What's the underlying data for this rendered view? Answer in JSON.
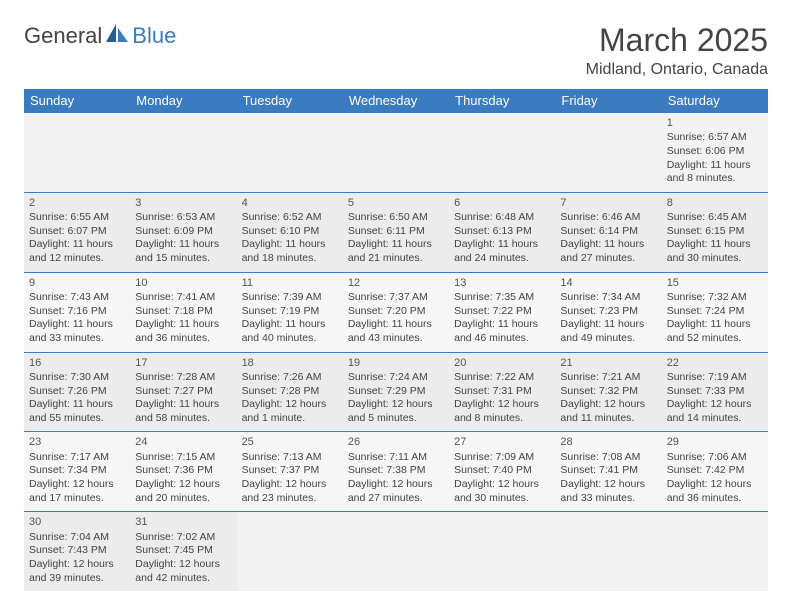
{
  "logo": {
    "word1": "General",
    "word2": "Blue"
  },
  "title": "March 2025",
  "location": "Midland, Ontario, Canada",
  "dayHeaders": [
    "Sunday",
    "Monday",
    "Tuesday",
    "Wednesday",
    "Thursday",
    "Friday",
    "Saturday"
  ],
  "colors": {
    "headerBg": "#3b7bbf",
    "headerText": "#ffffff",
    "bodyText": "#444444",
    "rowAlt1": "#f2f2f2",
    "rowAlt2": "#ececec",
    "borderTop": "#3b7bbf"
  },
  "weeks": [
    [
      null,
      null,
      null,
      null,
      null,
      null,
      {
        "n": "1",
        "sr": "Sunrise: 6:57 AM",
        "ss": "Sunset: 6:06 PM",
        "dl": "Daylight: 11 hours and 8 minutes."
      }
    ],
    [
      {
        "n": "2",
        "sr": "Sunrise: 6:55 AM",
        "ss": "Sunset: 6:07 PM",
        "dl": "Daylight: 11 hours and 12 minutes."
      },
      {
        "n": "3",
        "sr": "Sunrise: 6:53 AM",
        "ss": "Sunset: 6:09 PM",
        "dl": "Daylight: 11 hours and 15 minutes."
      },
      {
        "n": "4",
        "sr": "Sunrise: 6:52 AM",
        "ss": "Sunset: 6:10 PM",
        "dl": "Daylight: 11 hours and 18 minutes."
      },
      {
        "n": "5",
        "sr": "Sunrise: 6:50 AM",
        "ss": "Sunset: 6:11 PM",
        "dl": "Daylight: 11 hours and 21 minutes."
      },
      {
        "n": "6",
        "sr": "Sunrise: 6:48 AM",
        "ss": "Sunset: 6:13 PM",
        "dl": "Daylight: 11 hours and 24 minutes."
      },
      {
        "n": "7",
        "sr": "Sunrise: 6:46 AM",
        "ss": "Sunset: 6:14 PM",
        "dl": "Daylight: 11 hours and 27 minutes."
      },
      {
        "n": "8",
        "sr": "Sunrise: 6:45 AM",
        "ss": "Sunset: 6:15 PM",
        "dl": "Daylight: 11 hours and 30 minutes."
      }
    ],
    [
      {
        "n": "9",
        "sr": "Sunrise: 7:43 AM",
        "ss": "Sunset: 7:16 PM",
        "dl": "Daylight: 11 hours and 33 minutes."
      },
      {
        "n": "10",
        "sr": "Sunrise: 7:41 AM",
        "ss": "Sunset: 7:18 PM",
        "dl": "Daylight: 11 hours and 36 minutes."
      },
      {
        "n": "11",
        "sr": "Sunrise: 7:39 AM",
        "ss": "Sunset: 7:19 PM",
        "dl": "Daylight: 11 hours and 40 minutes."
      },
      {
        "n": "12",
        "sr": "Sunrise: 7:37 AM",
        "ss": "Sunset: 7:20 PM",
        "dl": "Daylight: 11 hours and 43 minutes."
      },
      {
        "n": "13",
        "sr": "Sunrise: 7:35 AM",
        "ss": "Sunset: 7:22 PM",
        "dl": "Daylight: 11 hours and 46 minutes."
      },
      {
        "n": "14",
        "sr": "Sunrise: 7:34 AM",
        "ss": "Sunset: 7:23 PM",
        "dl": "Daylight: 11 hours and 49 minutes."
      },
      {
        "n": "15",
        "sr": "Sunrise: 7:32 AM",
        "ss": "Sunset: 7:24 PM",
        "dl": "Daylight: 11 hours and 52 minutes."
      }
    ],
    [
      {
        "n": "16",
        "sr": "Sunrise: 7:30 AM",
        "ss": "Sunset: 7:26 PM",
        "dl": "Daylight: 11 hours and 55 minutes."
      },
      {
        "n": "17",
        "sr": "Sunrise: 7:28 AM",
        "ss": "Sunset: 7:27 PM",
        "dl": "Daylight: 11 hours and 58 minutes."
      },
      {
        "n": "18",
        "sr": "Sunrise: 7:26 AM",
        "ss": "Sunset: 7:28 PM",
        "dl": "Daylight: 12 hours and 1 minute."
      },
      {
        "n": "19",
        "sr": "Sunrise: 7:24 AM",
        "ss": "Sunset: 7:29 PM",
        "dl": "Daylight: 12 hours and 5 minutes."
      },
      {
        "n": "20",
        "sr": "Sunrise: 7:22 AM",
        "ss": "Sunset: 7:31 PM",
        "dl": "Daylight: 12 hours and 8 minutes."
      },
      {
        "n": "21",
        "sr": "Sunrise: 7:21 AM",
        "ss": "Sunset: 7:32 PM",
        "dl": "Daylight: 12 hours and 11 minutes."
      },
      {
        "n": "22",
        "sr": "Sunrise: 7:19 AM",
        "ss": "Sunset: 7:33 PM",
        "dl": "Daylight: 12 hours and 14 minutes."
      }
    ],
    [
      {
        "n": "23",
        "sr": "Sunrise: 7:17 AM",
        "ss": "Sunset: 7:34 PM",
        "dl": "Daylight: 12 hours and 17 minutes."
      },
      {
        "n": "24",
        "sr": "Sunrise: 7:15 AM",
        "ss": "Sunset: 7:36 PM",
        "dl": "Daylight: 12 hours and 20 minutes."
      },
      {
        "n": "25",
        "sr": "Sunrise: 7:13 AM",
        "ss": "Sunset: 7:37 PM",
        "dl": "Daylight: 12 hours and 23 minutes."
      },
      {
        "n": "26",
        "sr": "Sunrise: 7:11 AM",
        "ss": "Sunset: 7:38 PM",
        "dl": "Daylight: 12 hours and 27 minutes."
      },
      {
        "n": "27",
        "sr": "Sunrise: 7:09 AM",
        "ss": "Sunset: 7:40 PM",
        "dl": "Daylight: 12 hours and 30 minutes."
      },
      {
        "n": "28",
        "sr": "Sunrise: 7:08 AM",
        "ss": "Sunset: 7:41 PM",
        "dl": "Daylight: 12 hours and 33 minutes."
      },
      {
        "n": "29",
        "sr": "Sunrise: 7:06 AM",
        "ss": "Sunset: 7:42 PM",
        "dl": "Daylight: 12 hours and 36 minutes."
      }
    ],
    [
      {
        "n": "30",
        "sr": "Sunrise: 7:04 AM",
        "ss": "Sunset: 7:43 PM",
        "dl": "Daylight: 12 hours and 39 minutes."
      },
      {
        "n": "31",
        "sr": "Sunrise: 7:02 AM",
        "ss": "Sunset: 7:45 PM",
        "dl": "Daylight: 12 hours and 42 minutes."
      },
      null,
      null,
      null,
      null,
      null
    ]
  ]
}
